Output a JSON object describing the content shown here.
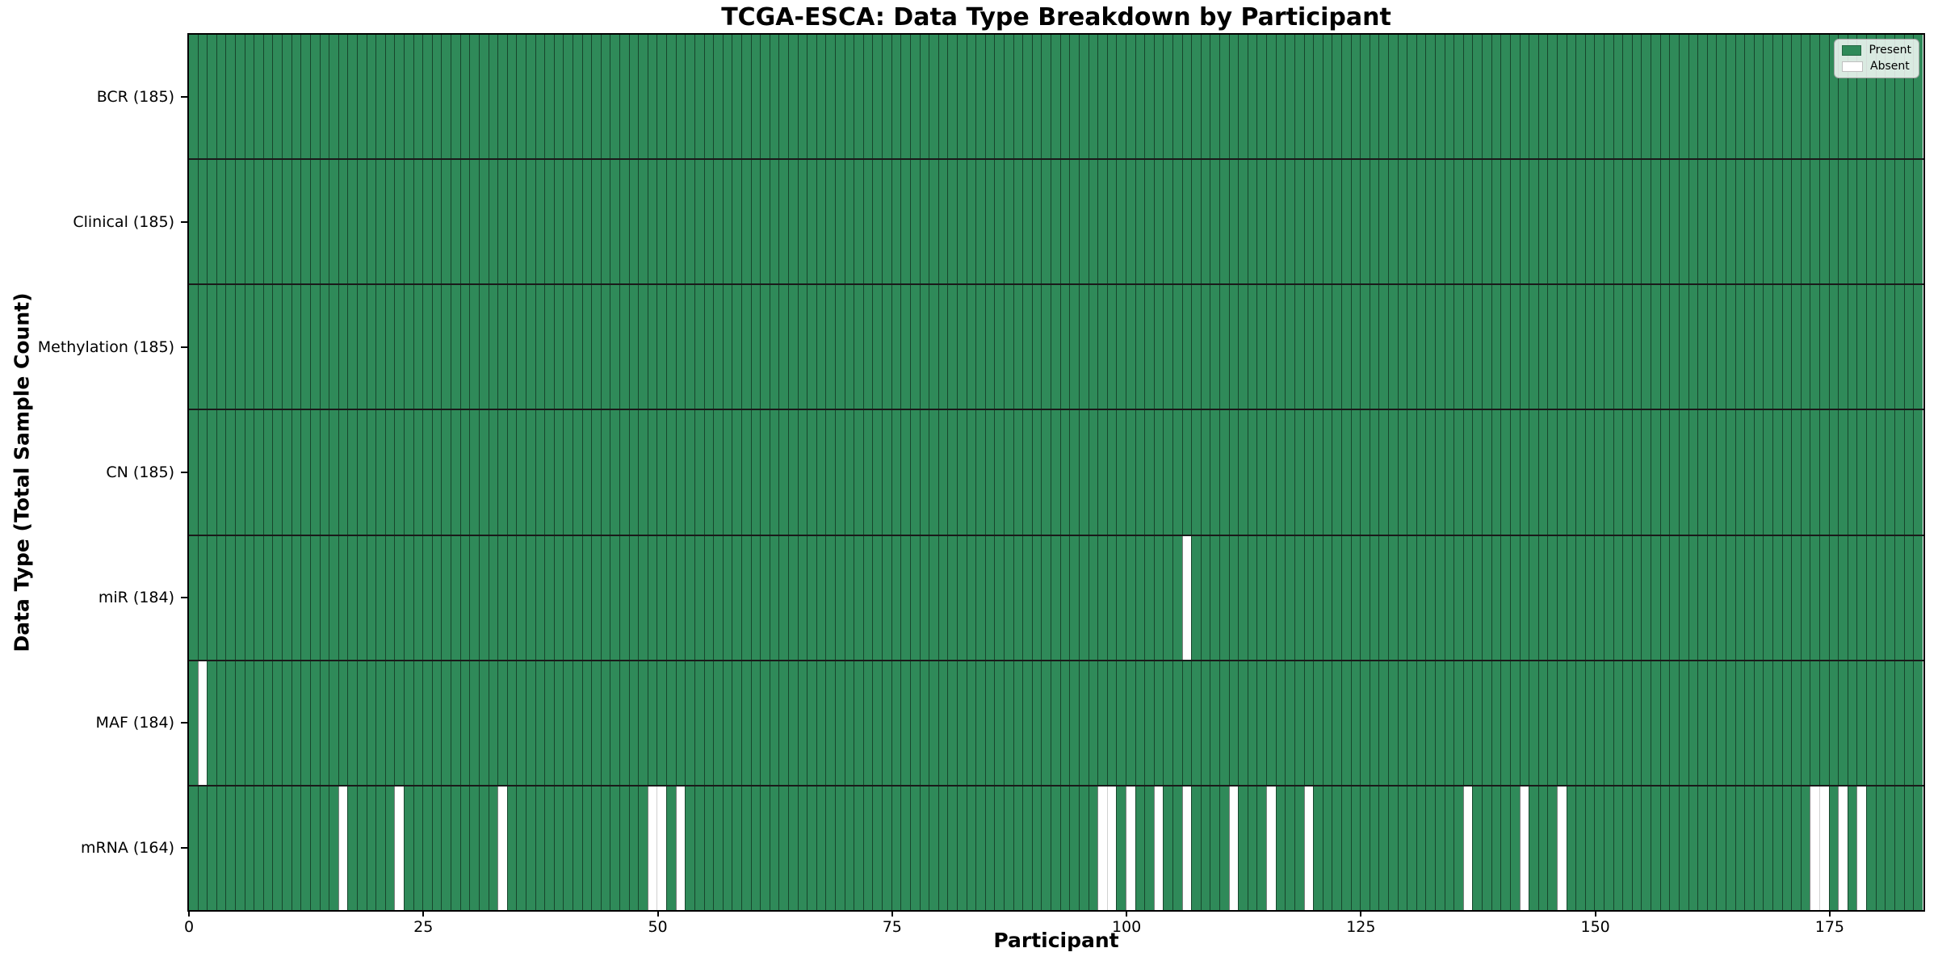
{
  "title": "TCGA-ESCA: Data Type Breakdown by Participant",
  "xlabel": "Participant",
  "ylabel": "Data Type (Total Sample Count)",
  "legend": {
    "present_label": "Present",
    "absent_label": "Absent"
  },
  "colors": {
    "present_green": "#2F8A59",
    "absent_white": "#FFFFFF",
    "cell_edge": "rgba(0,0,0,0.50)",
    "row_divider": "#1A1A1A",
    "axis_spine": "#000000"
  },
  "chart_data": {
    "type": "heatmap",
    "title": "TCGA-ESCA: Data Type Breakdown by Participant",
    "xlabel": "Participant",
    "ylabel": "Data Type (Total Sample Count)",
    "n_participants": 185,
    "x_ticks": [
      0,
      25,
      50,
      75,
      100,
      125,
      150,
      175
    ],
    "legend_entries": [
      "Present",
      "Absent"
    ],
    "legend_position": "upper right",
    "grid": false,
    "rows": [
      {
        "label": "BCR (185)",
        "data_type": "BCR",
        "present_count": 185,
        "absent_participants": []
      },
      {
        "label": "Clinical (185)",
        "data_type": "Clinical",
        "present_count": 185,
        "absent_participants": []
      },
      {
        "label": "Methylation (185)",
        "data_type": "Methylation",
        "present_count": 185,
        "absent_participants": []
      },
      {
        "label": "CN (185)",
        "data_type": "CN",
        "present_count": 185,
        "absent_participants": []
      },
      {
        "label": "miR (184)",
        "data_type": "miR",
        "present_count": 184,
        "absent_participants": [
          106
        ]
      },
      {
        "label": "MAF (184)",
        "data_type": "MAF",
        "present_count": 184,
        "absent_participants": [
          1
        ]
      },
      {
        "label": "mRNA (164)",
        "data_type": "mRNA",
        "present_count": 164,
        "absent_participants": [
          16,
          22,
          33,
          49,
          50,
          52,
          97,
          98,
          100,
          103,
          106,
          111,
          115,
          119,
          136,
          142,
          146,
          173,
          174,
          176,
          178
        ]
      }
    ]
  }
}
